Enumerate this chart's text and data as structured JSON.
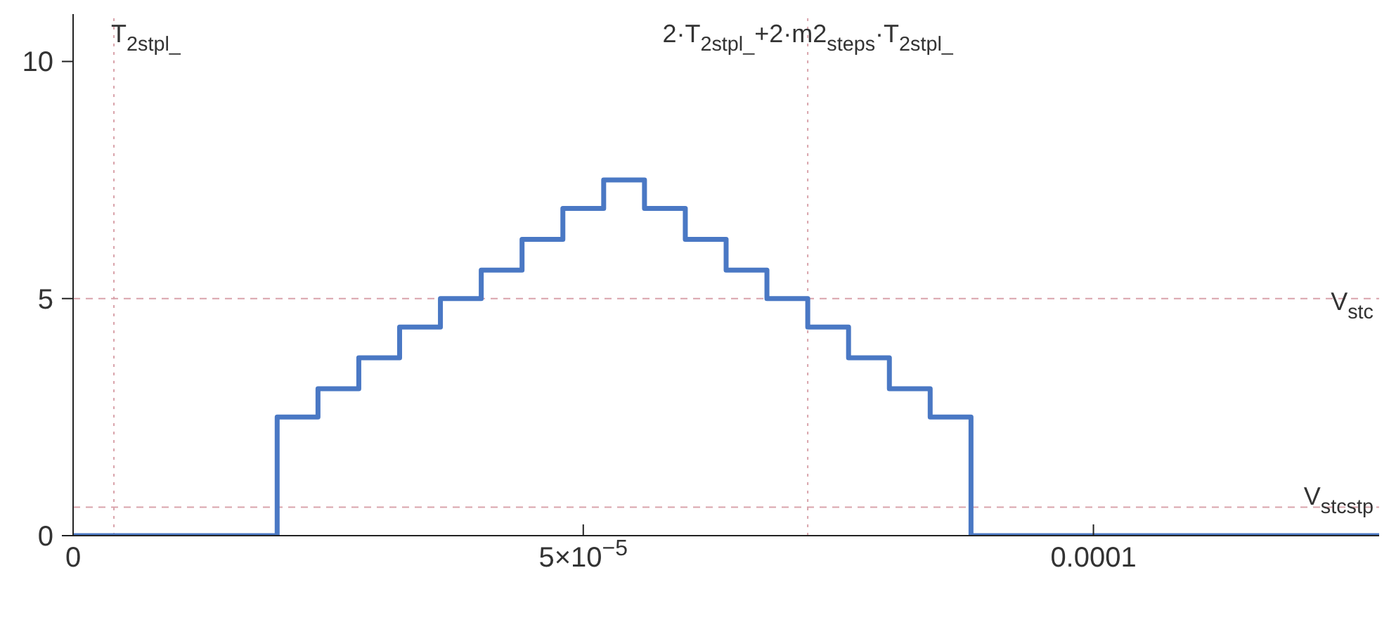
{
  "chart_data": {
    "type": "step",
    "x": [
      0,
      2e-05,
      2.4e-05,
      2.8e-05,
      3.2e-05,
      3.6e-05,
      4e-05,
      4.4e-05,
      4.8e-05,
      5.2e-05,
      5.6e-05,
      6e-05,
      6.4e-05,
      6.8e-05,
      7.2e-05,
      7.6e-05,
      8e-05,
      8.4e-05,
      8.8e-05,
      0.000128
    ],
    "series": [
      {
        "color": "#4a78c4",
        "values": [
          0,
          2.5,
          3.1,
          3.75,
          4.4,
          5,
          5.6,
          6.25,
          6.9,
          7.5,
          6.9,
          6.25,
          5.6,
          5,
          4.4,
          3.75,
          3.1,
          2.5,
          0,
          0
        ]
      }
    ],
    "xlim": [
      0,
      0.000128
    ],
    "ylim": [
      0,
      11
    ],
    "xticks": [
      0,
      {
        "value": 5e-05,
        "label": "5×10$^{−5}$"
      },
      {
        "value": 0.0001,
        "label": "0.0001"
      }
    ],
    "yticks": [
      0,
      5,
      10
    ],
    "ref_lines": [
      {
        "axis": "x",
        "value": 4e-06,
        "label": "T$_{2stpl_}$",
        "color": "#d9a3ab",
        "line_style": "dotted"
      },
      {
        "axis": "x",
        "value": 7.2e-05,
        "label": "2·T$_{2stpl_}$+2·m2$_{steps}$·T$_{2stpl_}$",
        "color": "#d9a3ab",
        "line_style": "dotted"
      },
      {
        "axis": "y",
        "value": 5,
        "label": "V$_{stc}$",
        "color": "#d9a3ab",
        "line_style": "dashed"
      },
      {
        "axis": "y",
        "value": 0.6,
        "label": "V$_{stcstp}$",
        "color": "#d9a3ab",
        "line_style": "dashed"
      }
    ],
    "grid": false,
    "legend": false,
    "marker": "none",
    "line_style": "solid"
  }
}
